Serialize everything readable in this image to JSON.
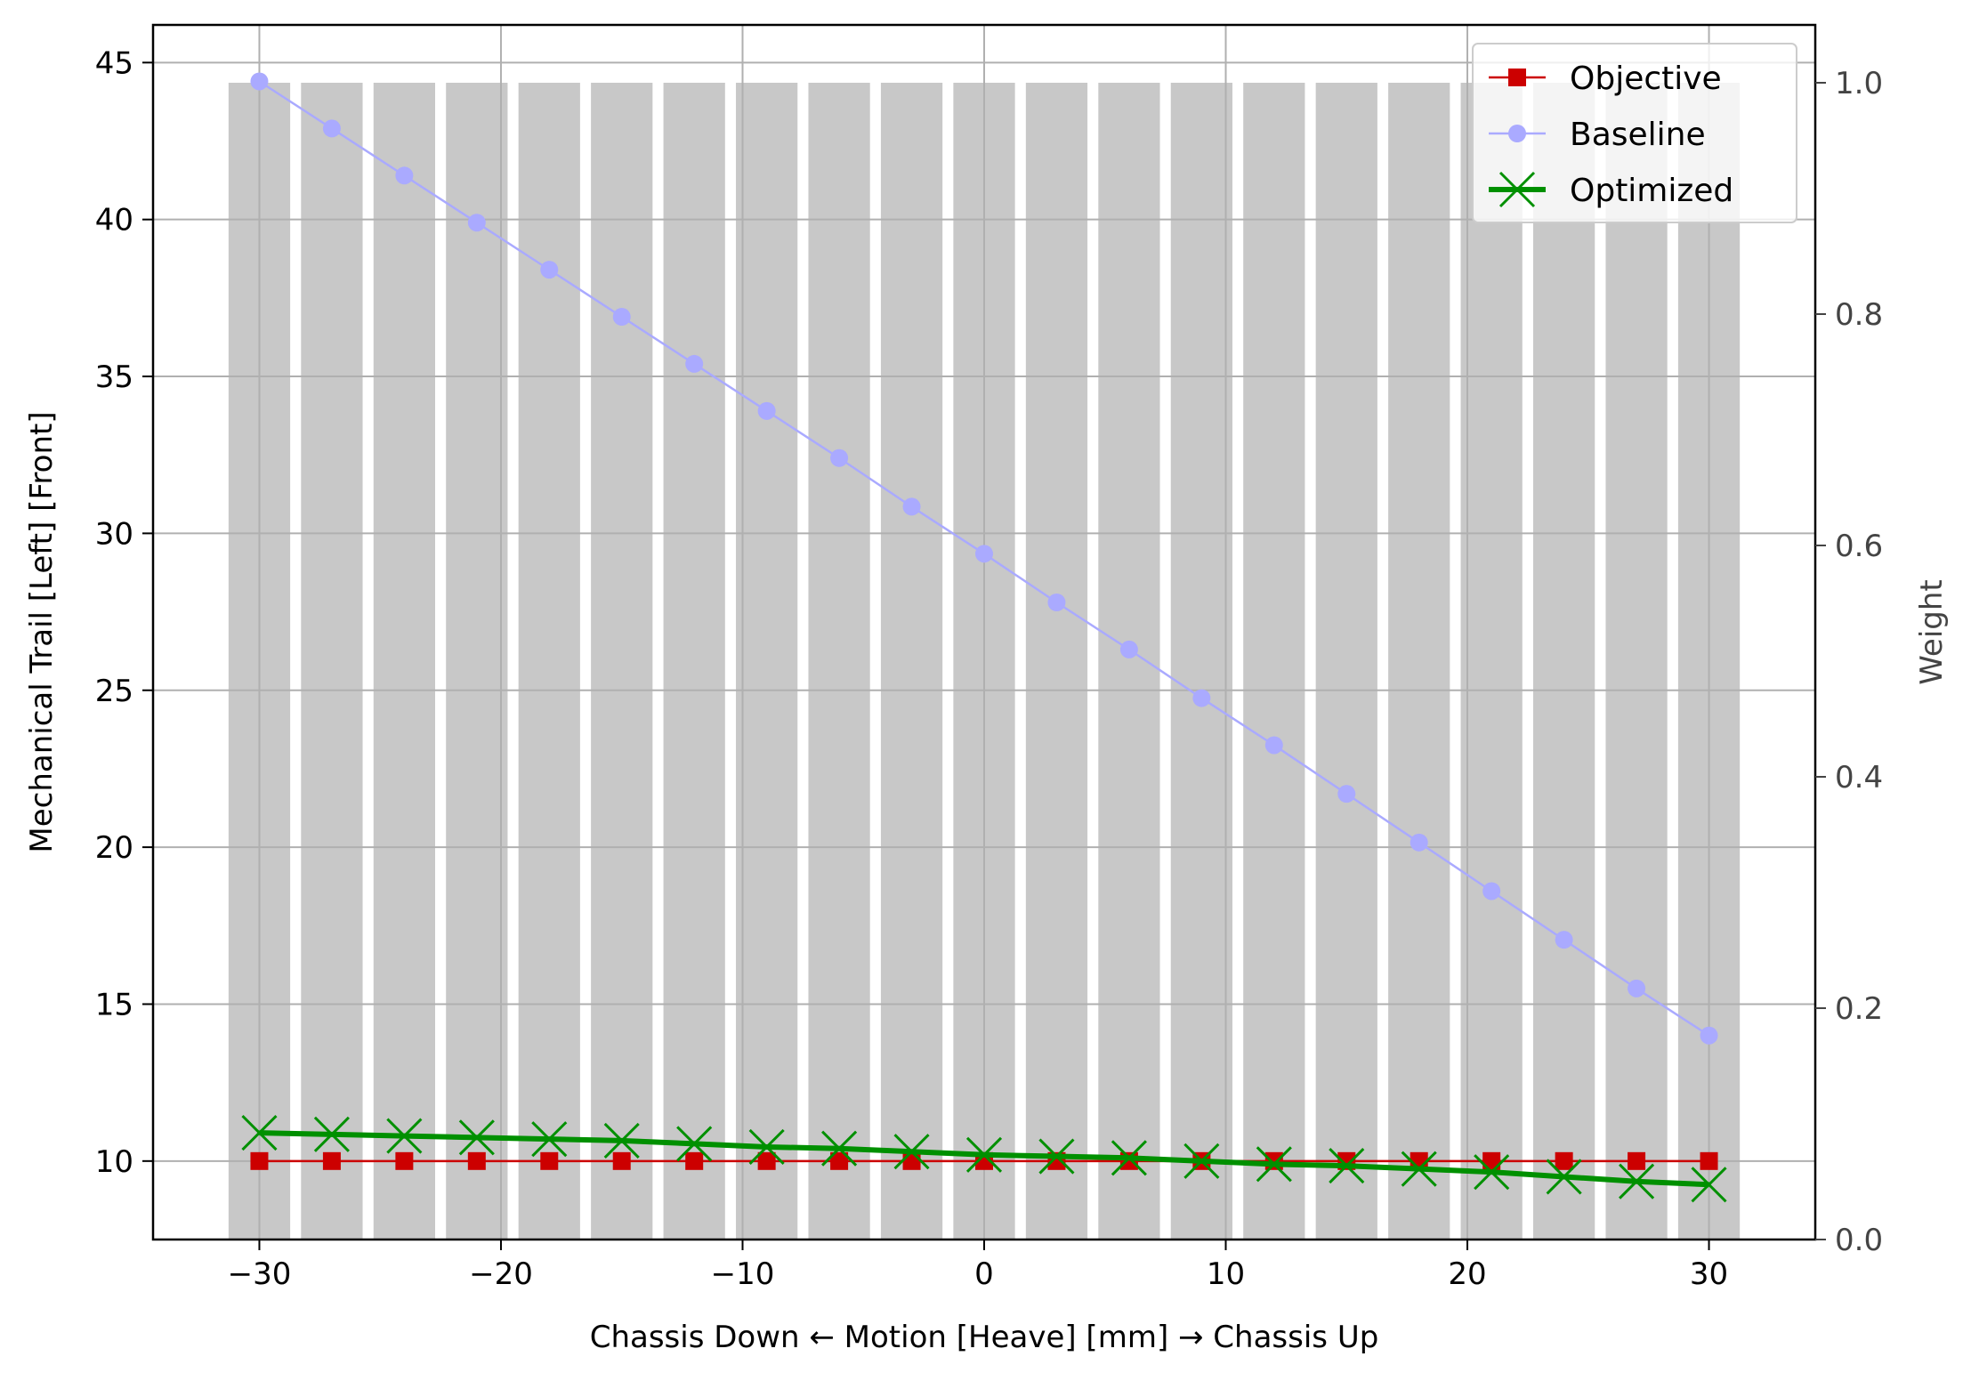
{
  "chart_data": {
    "type": "line",
    "xlabel": "Chassis Down ← Motion [Heave] [mm] → Chassis Up",
    "ylabel": "Mechanical Trail [Left] [Front]",
    "y2label": "Weight",
    "xlim": [
      -34.4,
      34.4
    ],
    "ylim": [
      7.5,
      46.2
    ],
    "y2lim": [
      0.0,
      1.05
    ],
    "xticks": [
      -30,
      -20,
      -10,
      0,
      10,
      20,
      30
    ],
    "xtick_labels": [
      "−30",
      "−20",
      "−10",
      "0",
      "10",
      "20",
      "30"
    ],
    "yticks": [
      10,
      15,
      20,
      25,
      30,
      35,
      40,
      45
    ],
    "ytick_labels": [
      "10",
      "15",
      "20",
      "25",
      "30",
      "35",
      "40",
      "45"
    ],
    "y2ticks": [
      0.0,
      0.2,
      0.4,
      0.6,
      0.8,
      1.0
    ],
    "y2tick_labels": [
      "0.0",
      "0.2",
      "0.4",
      "0.6",
      "0.8",
      "1.0"
    ],
    "grid": true,
    "legend_position": "top-right",
    "x": [
      -30,
      -27,
      -24,
      -21,
      -18,
      -15,
      -12,
      -9,
      -6,
      -3,
      0,
      3,
      6,
      9,
      12,
      15,
      18,
      21,
      24,
      27,
      30
    ],
    "series": [
      {
        "name": "Objective",
        "color": "#cc0000",
        "marker": "square",
        "values": [
          10,
          10,
          10,
          10,
          10,
          10,
          10,
          10,
          10,
          10,
          10,
          10,
          10,
          10,
          10,
          10,
          10,
          10,
          10,
          10,
          10
        ]
      },
      {
        "name": "Baseline",
        "color": "#aaaaff",
        "marker": "circle",
        "values": [
          44.4,
          42.9,
          41.4,
          39.9,
          38.4,
          36.9,
          35.4,
          33.9,
          32.4,
          30.85,
          29.35,
          27.8,
          26.3,
          24.75,
          23.25,
          21.7,
          20.15,
          18.6,
          17.05,
          15.5,
          14.0
        ]
      },
      {
        "name": "Optimized",
        "color": "#009000",
        "marker": "x",
        "values": [
          10.9,
          10.85,
          10.8,
          10.75,
          10.7,
          10.65,
          10.55,
          10.45,
          10.4,
          10.3,
          10.2,
          10.15,
          10.1,
          10.0,
          9.9,
          9.85,
          9.75,
          9.65,
          9.5,
          9.35,
          9.25
        ]
      }
    ],
    "weights": {
      "color": "#c8c8c8",
      "values": [
        1.0,
        1.0,
        1.0,
        1.0,
        1.0,
        1.0,
        1.0,
        1.0,
        1.0,
        1.0,
        1.0,
        1.0,
        1.0,
        1.0,
        1.0,
        1.0,
        1.0,
        1.0,
        1.0,
        1.0,
        1.0
      ]
    }
  }
}
